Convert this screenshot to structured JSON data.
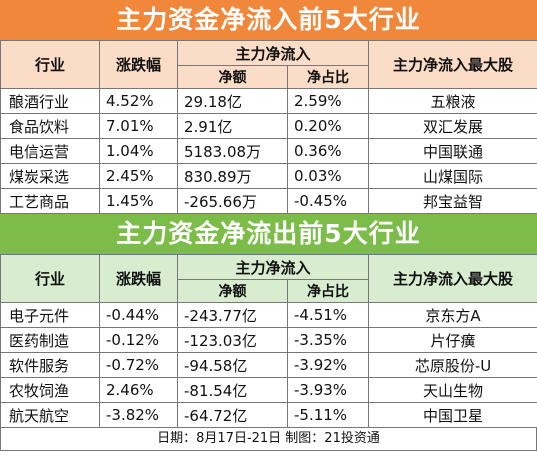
{
  "inflow": {
    "title": "主力资金净流入前5大行业",
    "headers": {
      "industry": "行业",
      "change": "涨跌幅",
      "netflow_group": "主力净流入",
      "amount": "净额",
      "ratio": "净占比",
      "top_stock": "主力净流入最大股"
    },
    "rows": [
      {
        "industry": "酿酒行业",
        "change": "4.52%",
        "amount": "29.18亿",
        "ratio": "2.59%",
        "stock": "五粮液"
      },
      {
        "industry": "食品饮料",
        "change": "7.01%",
        "amount": "2.91亿",
        "ratio": "0.20%",
        "stock": "双汇发展"
      },
      {
        "industry": "电信运营",
        "change": "1.04%",
        "amount": "5183.08万",
        "ratio": "0.36%",
        "stock": "中国联通"
      },
      {
        "industry": "煤炭采选",
        "change": "2.45%",
        "amount": "830.89万",
        "ratio": "0.03%",
        "stock": "山煤国际"
      },
      {
        "industry": "工艺商品",
        "change": "1.45%",
        "amount": "-265.66万",
        "ratio": "-0.45%",
        "stock": "邦宝益智"
      }
    ]
  },
  "outflow": {
    "title": "主力资金净流出前5大行业",
    "headers": {
      "industry": "行业",
      "change": "涨跌幅",
      "netflow_group": "主力净流入",
      "amount": "净额",
      "ratio": "净占比",
      "top_stock": "主力净流入最大股"
    },
    "rows": [
      {
        "industry": "电子元件",
        "change": "-0.44%",
        "amount": "-243.77亿",
        "ratio": "-4.51%",
        "stock": "京东方A"
      },
      {
        "industry": "医药制造",
        "change": "-0.12%",
        "amount": "-123.03亿",
        "ratio": "-3.35%",
        "stock": "片仔癀"
      },
      {
        "industry": "软件服务",
        "change": "-0.72%",
        "amount": "-94.58亿",
        "ratio": "-3.92%",
        "stock": "芯原股份-U"
      },
      {
        "industry": "农牧饲渔",
        "change": "2.46%",
        "amount": "-81.54亿",
        "ratio": "-3.93%",
        "stock": "天山生物"
      },
      {
        "industry": "航天航空",
        "change": "-3.82%",
        "amount": "-64.72亿",
        "ratio": "-5.11%",
        "stock": "中国卫星"
      }
    ]
  },
  "footer": "日期：8月17日-21日  制图：21投资通",
  "colors": {
    "inflow_banner": "#f0873a",
    "inflow_header": "#fbdcc6",
    "outflow_banner": "#7cbd4a",
    "outflow_header": "#d8ecd0"
  }
}
